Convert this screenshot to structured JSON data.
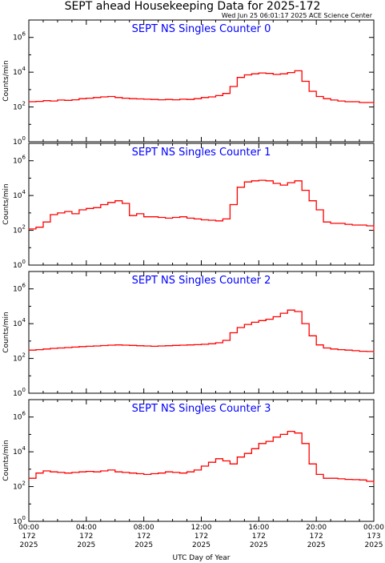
{
  "title": "SEPT ahead Housekeeping Data for 2025-172",
  "timestamp": "Wed Jun 25 06:01:17 2025 ACE Science Center",
  "xlabel": "UTC Day of Year",
  "line_color": "#ff0000",
  "title_color": "#0000ff",
  "chart_data": [
    {
      "type": "line",
      "title": "SEPT NS Singles Counter 0",
      "ylabel": "Counts/min",
      "yscale": "log",
      "ylim": [
        1,
        10000000
      ],
      "xlim": [
        0,
        24
      ],
      "y_ticks": [
        {
          "exp": "0",
          "value": 1
        },
        {
          "exp": "2",
          "value": 100
        },
        {
          "exp": "4",
          "value": 10000
        },
        {
          "exp": "6",
          "value": 1000000
        }
      ],
      "x": [
        0,
        0.5,
        1,
        1.5,
        2,
        2.5,
        3,
        3.5,
        4,
        4.5,
        5,
        5.5,
        6,
        6.5,
        7,
        7.5,
        8,
        8.5,
        9,
        9.5,
        10,
        10.5,
        11,
        11.5,
        12,
        12.5,
        13,
        13.5,
        14,
        14.5,
        15,
        15.5,
        16,
        16.5,
        17,
        17.5,
        18,
        18.5,
        19,
        19.5,
        20,
        20.5,
        21,
        21.5,
        22,
        22.5,
        23,
        23.5,
        24
      ],
      "values": [
        200,
        210,
        230,
        220,
        250,
        240,
        260,
        300,
        320,
        350,
        380,
        400,
        350,
        320,
        300,
        290,
        280,
        270,
        260,
        270,
        260,
        280,
        270,
        300,
        350,
        380,
        450,
        600,
        1500,
        5000,
        7000,
        8000,
        9000,
        8500,
        7500,
        8000,
        9500,
        12000,
        3000,
        800,
        400,
        300,
        250,
        220,
        200,
        200,
        180,
        180,
        170
      ]
    },
    {
      "type": "line",
      "title": "SEPT NS Singles Counter 1",
      "ylabel": "Counts/min",
      "yscale": "log",
      "ylim": [
        1,
        10000000
      ],
      "xlim": [
        0,
        24
      ],
      "y_ticks": [
        {
          "exp": "0",
          "value": 1
        },
        {
          "exp": "2",
          "value": 100
        },
        {
          "exp": "4",
          "value": 10000
        },
        {
          "exp": "6",
          "value": 1000000
        }
      ],
      "x": [
        0,
        0.5,
        1,
        1.5,
        2,
        2.5,
        3,
        3.5,
        4,
        4.5,
        5,
        5.5,
        6,
        6.5,
        7,
        7.5,
        8,
        8.5,
        9,
        9.5,
        10,
        10.5,
        11,
        11.5,
        12,
        12.5,
        13,
        13.5,
        14,
        14.5,
        15,
        15.5,
        16,
        16.5,
        17,
        17.5,
        18,
        18.5,
        19,
        19.5,
        20,
        20.5,
        21,
        21.5,
        22,
        22.5,
        23,
        23.5,
        24
      ],
      "values": [
        120,
        150,
        300,
        800,
        1000,
        1200,
        900,
        1500,
        1800,
        2000,
        3000,
        4000,
        5000,
        3500,
        700,
        900,
        600,
        600,
        550,
        500,
        550,
        600,
        500,
        450,
        400,
        380,
        350,
        450,
        3000,
        30000,
        60000,
        70000,
        75000,
        70000,
        50000,
        40000,
        55000,
        70000,
        20000,
        5000,
        1500,
        300,
        250,
        250,
        220,
        200,
        200,
        180,
        100
      ]
    },
    {
      "type": "line",
      "title": "SEPT NS Singles Counter 2",
      "ylabel": "Counts/min",
      "yscale": "log",
      "ylim": [
        1,
        10000000
      ],
      "xlim": [
        0,
        24
      ],
      "y_ticks": [
        {
          "exp": "0",
          "value": 1
        },
        {
          "exp": "2",
          "value": 100
        },
        {
          "exp": "4",
          "value": 10000
        },
        {
          "exp": "6",
          "value": 1000000
        }
      ],
      "x": [
        0,
        0.5,
        1,
        1.5,
        2,
        2.5,
        3,
        3.5,
        4,
        4.5,
        5,
        5.5,
        6,
        6.5,
        7,
        7.5,
        8,
        8.5,
        9,
        9.5,
        10,
        10.5,
        11,
        11.5,
        12,
        12.5,
        13,
        13.5,
        14,
        14.5,
        15,
        15.5,
        16,
        16.5,
        17,
        17.5,
        18,
        18.5,
        19,
        19.5,
        20,
        20.5,
        21,
        21.5,
        22,
        22.5,
        23,
        23.5,
        24
      ],
      "values": [
        300,
        320,
        350,
        380,
        400,
        420,
        450,
        480,
        500,
        520,
        550,
        580,
        600,
        580,
        560,
        540,
        520,
        500,
        520,
        540,
        560,
        580,
        600,
        620,
        650,
        700,
        800,
        1100,
        3000,
        6000,
        9000,
        12000,
        15000,
        18000,
        25000,
        40000,
        60000,
        50000,
        10000,
        2000,
        600,
        400,
        350,
        320,
        300,
        280,
        260,
        250,
        240
      ]
    },
    {
      "type": "line",
      "title": "SEPT NS Singles Counter 3",
      "ylabel": "Counts/min",
      "yscale": "log",
      "ylim": [
        1,
        10000000
      ],
      "xlim": [
        0,
        24
      ],
      "y_ticks": [
        {
          "exp": "0",
          "value": 1
        },
        {
          "exp": "2",
          "value": 100
        },
        {
          "exp": "4",
          "value": 10000
        },
        {
          "exp": "6",
          "value": 1000000
        }
      ],
      "x": [
        0,
        0.5,
        1,
        1.5,
        2,
        2.5,
        3,
        3.5,
        4,
        4.5,
        5,
        5.5,
        6,
        6.5,
        7,
        7.5,
        8,
        8.5,
        9,
        9.5,
        10,
        10.5,
        11,
        11.5,
        12,
        12.5,
        13,
        13.5,
        14,
        14.5,
        15,
        15.5,
        16,
        16.5,
        17,
        17.5,
        18,
        18.5,
        19,
        19.5,
        20,
        20.5,
        21,
        21.5,
        22,
        22.5,
        23,
        23.5,
        24
      ],
      "values": [
        300,
        600,
        800,
        700,
        650,
        600,
        650,
        700,
        750,
        700,
        800,
        900,
        700,
        650,
        600,
        550,
        500,
        550,
        600,
        700,
        650,
        600,
        700,
        900,
        1500,
        2500,
        4000,
        3000,
        2000,
        5000,
        8000,
        15000,
        30000,
        40000,
        70000,
        100000,
        150000,
        120000,
        30000,
        2000,
        500,
        300,
        300,
        280,
        260,
        250,
        240,
        200,
        150
      ]
    }
  ],
  "x_ticks": [
    {
      "hour": 0,
      "time": "00:00",
      "day": "172",
      "year": "2025"
    },
    {
      "hour": 4,
      "time": "04:00",
      "day": "172",
      "year": "2025"
    },
    {
      "hour": 8,
      "time": "08:00",
      "day": "172",
      "year": "2025"
    },
    {
      "hour": 12,
      "time": "12:00",
      "day": "172",
      "year": "2025"
    },
    {
      "hour": 16,
      "time": "16:00",
      "day": "172",
      "year": "2025"
    },
    {
      "hour": 20,
      "time": "20:00",
      "day": "172",
      "year": "2025"
    },
    {
      "hour": 24,
      "time": "00:00",
      "day": "173",
      "year": "2025"
    }
  ]
}
